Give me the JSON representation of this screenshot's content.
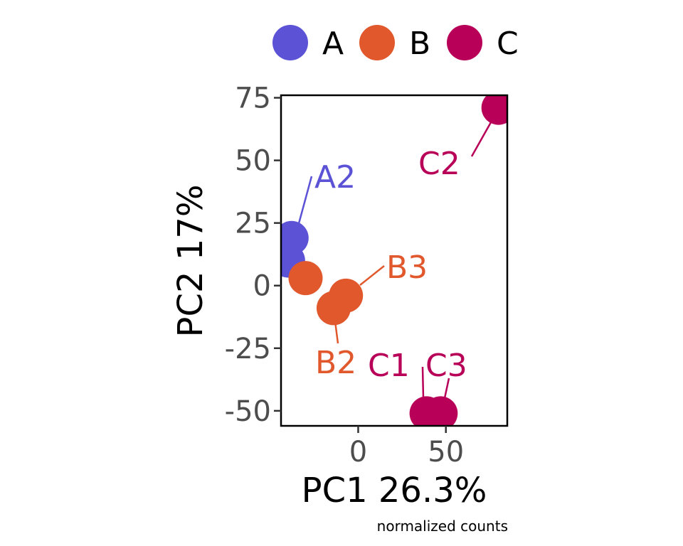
{
  "chart_data": {
    "type": "scatter",
    "xlabel": "PC1 26.3%",
    "ylabel": "PC2 17%",
    "caption": "normalized counts",
    "xlim": [
      -44,
      85
    ],
    "ylim": [
      -56,
      76
    ],
    "x_ticks": [
      0,
      50
    ],
    "x_tick_labels": [
      "0",
      "50"
    ],
    "y_ticks": [
      75,
      50,
      25,
      0,
      -25,
      -50
    ],
    "y_tick_labels": [
      "75",
      "50",
      "25",
      "0",
      "-25",
      "-50"
    ],
    "grid": false,
    "legend_position": "top",
    "series": [
      {
        "name": "A",
        "color": "#5b52d6",
        "points": [
          {
            "x": -40,
            "y": 10,
            "label": ""
          },
          {
            "x": -38,
            "y": 19,
            "label": "A2"
          }
        ]
      },
      {
        "name": "B",
        "color": "#e0582c",
        "points": [
          {
            "x": -30,
            "y": 3,
            "label": ""
          },
          {
            "x": -14,
            "y": -9,
            "label": "B2"
          },
          {
            "x": -7,
            "y": -4,
            "label": "B3"
          }
        ]
      },
      {
        "name": "C",
        "color": "#b80058",
        "points": [
          {
            "x": 39,
            "y": -51,
            "label": "C1"
          },
          {
            "x": 80,
            "y": 71,
            "label": "C2"
          },
          {
            "x": 47,
            "y": -51,
            "label": "C3"
          }
        ]
      }
    ]
  }
}
